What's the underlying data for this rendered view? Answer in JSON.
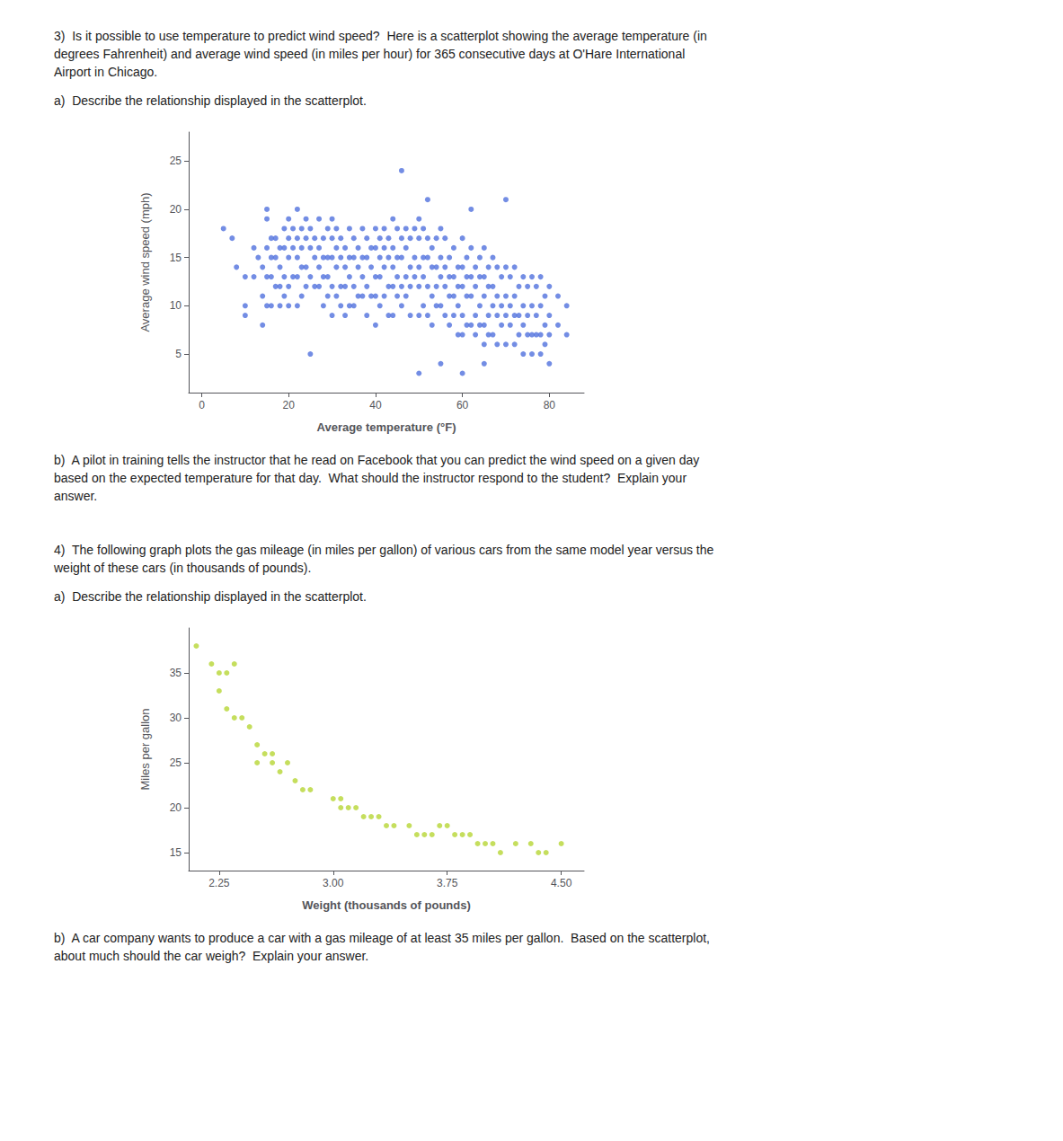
{
  "chart_data": [
    {
      "type": "scatter",
      "annotations": [
        "3)  Is it possible to use temperature to predict wind speed?  Here is a scatterplot showing the average temperature (in\ndegrees Fahrenheit) and average wind speed (in miles per hour) for 365 consecutive days at O'Hare International\nAirport in Chicago.",
        "a)  Describe the relationship displayed in the scatterplot.",
        "b)  A pilot in training tells the instructor that he read on Facebook that you can predict the wind speed on a given day\nbased on the expected temperature for that day.  What should the instructor respond to the student?  Explain your\nanswer."
      ],
      "xlabel": "Average temperature (°F)",
      "ylabel": "Average wind speed (mph)",
      "x": [
        5,
        7,
        8,
        10,
        10,
        10,
        12,
        12,
        13,
        14,
        14,
        14,
        15,
        15,
        15,
        15,
        16,
        16,
        16,
        16,
        17,
        17,
        17,
        18,
        18,
        18,
        18,
        19,
        19,
        19,
        19,
        20,
        20,
        20,
        20,
        20,
        21,
        21,
        21,
        22,
        22,
        22,
        22,
        22,
        23,
        23,
        23,
        23,
        24,
        24,
        24,
        24,
        25,
        25,
        25,
        26,
        26,
        26,
        27,
        27,
        27,
        27,
        28,
        28,
        28,
        28,
        29,
        29,
        29,
        29,
        30,
        30,
        30,
        30,
        30,
        31,
        31,
        31,
        31,
        32,
        32,
        32,
        32,
        33,
        33,
        33,
        33,
        34,
        34,
        34,
        34,
        35,
        35,
        35,
        35,
        36,
        36,
        36,
        37,
        37,
        37,
        37,
        38,
        38,
        38,
        38,
        39,
        39,
        39,
        40,
        40,
        40,
        40,
        40,
        41,
        41,
        41,
        41,
        42,
        42,
        42,
        42,
        43,
        43,
        43,
        43,
        44,
        44,
        44,
        44,
        44,
        45,
        45,
        45,
        45,
        46,
        46,
        46,
        46,
        47,
        47,
        47,
        47,
        48,
        48,
        48,
        48,
        49,
        49,
        49,
        50,
        50,
        50,
        50,
        50,
        51,
        51,
        51,
        51,
        52,
        52,
        52,
        52,
        53,
        53,
        53,
        53,
        54,
        54,
        54,
        54,
        55,
        55,
        55,
        55,
        56,
        56,
        56,
        56,
        57,
        57,
        57,
        57,
        58,
        58,
        58,
        58,
        59,
        59,
        59,
        59,
        60,
        60,
        60,
        60,
        60,
        61,
        61,
        61,
        61,
        62,
        62,
        62,
        62,
        63,
        63,
        63,
        63,
        64,
        64,
        64,
        64,
        65,
        65,
        65,
        65,
        65,
        66,
        66,
        66,
        66,
        67,
        67,
        67,
        67,
        68,
        68,
        68,
        68,
        69,
        69,
        69,
        70,
        70,
        70,
        70,
        71,
        71,
        71,
        72,
        72,
        72,
        72,
        73,
        73,
        73,
        74,
        74,
        74,
        74,
        75,
        75,
        75,
        76,
        76,
        76,
        76,
        77,
        77,
        77,
        78,
        78,
        78,
        78,
        79,
        79,
        79,
        80,
        80,
        80,
        80,
        82,
        82,
        84,
        84,
        46,
        52,
        15,
        62,
        70,
        25,
        55,
        65,
        50,
        60
      ],
      "values": [
        18,
        17,
        14,
        13,
        10,
        9,
        16,
        13,
        15,
        14,
        11,
        8,
        19,
        16,
        13,
        10,
        17,
        15,
        13,
        10,
        17,
        15,
        12,
        16,
        14,
        12,
        10,
        18,
        16,
        13,
        11,
        19,
        17,
        15,
        12,
        10,
        18,
        16,
        13,
        20,
        17,
        15,
        13,
        10,
        18,
        16,
        14,
        11,
        19,
        17,
        14,
        12,
        18,
        16,
        13,
        17,
        15,
        12,
        19,
        16,
        14,
        12,
        17,
        15,
        13,
        10,
        18,
        15,
        13,
        11,
        19,
        17,
        15,
        12,
        9,
        18,
        16,
        14,
        11,
        17,
        15,
        12,
        10,
        16,
        14,
        12,
        9,
        18,
        15,
        13,
        10,
        17,
        15,
        12,
        10,
        16,
        14,
        11,
        18,
        15,
        13,
        11,
        17,
        15,
        12,
        9,
        16,
        14,
        11,
        18,
        16,
        13,
        11,
        8,
        17,
        15,
        13,
        10,
        18,
        16,
        14,
        11,
        17,
        15,
        12,
        9,
        19,
        16,
        14,
        12,
        9,
        18,
        15,
        13,
        11,
        17,
        15,
        12,
        10,
        18,
        16,
        13,
        11,
        17,
        14,
        12,
        9,
        18,
        15,
        13,
        19,
        17,
        14,
        12,
        9,
        18,
        15,
        13,
        10,
        17,
        15,
        12,
        9,
        16,
        14,
        11,
        8,
        17,
        14,
        12,
        10,
        18,
        15,
        13,
        10,
        17,
        14,
        12,
        9,
        15,
        13,
        11,
        8,
        16,
        13,
        11,
        9,
        14,
        12,
        10,
        7,
        17,
        14,
        12,
        9,
        7,
        15,
        13,
        11,
        8,
        16,
        13,
        11,
        8,
        14,
        12,
        9,
        7,
        15,
        13,
        10,
        8,
        16,
        13,
        11,
        8,
        6,
        14,
        12,
        9,
        7,
        15,
        12,
        10,
        7,
        14,
        11,
        9,
        6,
        13,
        10,
        8,
        14,
        11,
        9,
        6,
        13,
        10,
        8,
        14,
        11,
        9,
        6,
        12,
        9,
        7,
        13,
        10,
        8,
        5,
        12,
        9,
        7,
        13,
        10,
        7,
        5,
        12,
        9,
        7,
        13,
        10,
        7,
        5,
        11,
        8,
        6,
        12,
        9,
        7,
        4,
        11,
        8,
        10,
        7,
        24,
        21,
        20,
        20,
        21,
        5,
        4,
        4,
        3,
        3
      ],
      "xlim": [
        -3,
        88
      ],
      "ylim": [
        1,
        28
      ],
      "xticks": [
        0,
        20,
        40,
        60,
        80
      ],
      "yticks": [
        5,
        10,
        15,
        20,
        25
      ],
      "grid": false
    },
    {
      "type": "scatter",
      "annotations": [
        "4)  The following graph plots the gas mileage (in miles per gallon) of various cars from the same model year versus the\nweight of these cars (in thousands of pounds).",
        "a)  Describe the relationship displayed in the scatterplot.",
        "b)  A car company wants to produce a car with a gas mileage of at least 35 miles per gallon.  Based on the scatterplot,\nabout much should the car weigh?  Explain your answer."
      ],
      "xlabel": "Weight (thousands of pounds)",
      "ylabel": "Miles per gallon",
      "x": [
        2.1,
        2.2,
        2.25,
        2.3,
        2.35,
        2.25,
        2.3,
        2.4,
        2.45,
        2.35,
        2.5,
        2.55,
        2.6,
        2.5,
        2.6,
        2.7,
        2.65,
        2.75,
        2.8,
        2.85,
        3.0,
        3.05,
        3.1,
        3.05,
        3.15,
        3.2,
        3.25,
        3.3,
        3.35,
        3.4,
        3.5,
        3.55,
        3.6,
        3.65,
        3.7,
        3.75,
        3.8,
        3.85,
        3.9,
        3.95,
        4.0,
        4.05,
        4.1,
        4.2,
        4.3,
        4.35,
        4.4,
        4.5
      ],
      "values": [
        38,
        36,
        35,
        35,
        36,
        33,
        31,
        30,
        29,
        30,
        27,
        26,
        26,
        25,
        25,
        25,
        24,
        23,
        22,
        22,
        21,
        21,
        20,
        20,
        20,
        19,
        19,
        19,
        18,
        18,
        18,
        17,
        17,
        17,
        18,
        18,
        17,
        17,
        17,
        16,
        16,
        16,
        15,
        16,
        16,
        15,
        15,
        16
      ],
      "xlim": [
        2.05,
        4.65
      ],
      "ylim": [
        13,
        40
      ],
      "xticks": [
        2.25,
        {
          "value": 3.0,
          "label": "3.00"
        },
        3.75,
        {
          "value": 4.5,
          "label": "4.50"
        }
      ],
      "yticks": [
        15,
        20,
        25,
        30,
        35
      ],
      "grid": false
    }
  ]
}
